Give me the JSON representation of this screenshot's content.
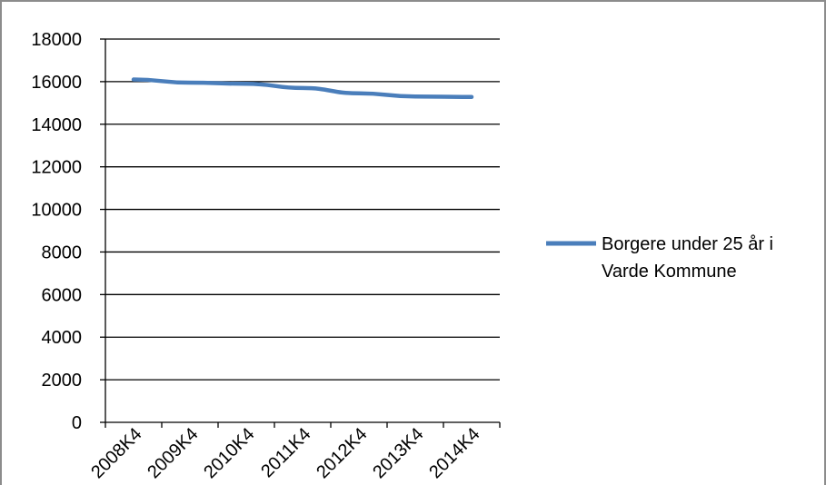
{
  "chart_data": {
    "type": "line",
    "categories": [
      "2008K4",
      "2009K4",
      "2010K4",
      "2011K4",
      "2012K4",
      "2013K4",
      "2014K4"
    ],
    "series": [
      {
        "name": "Borgere under 25 år i Varde Kommune",
        "values": [
          16100,
          15950,
          15900,
          15700,
          15450,
          15300,
          15280
        ],
        "color": "#4a7ebb"
      }
    ],
    "yticks": [
      0,
      2000,
      4000,
      6000,
      8000,
      10000,
      12000,
      14000,
      16000,
      18000
    ],
    "ylim": [
      0,
      18000
    ],
    "grid": true,
    "legend": "right",
    "legend_lines": [
      "Borgere under 25 år i",
      "Varde Kommune"
    ]
  }
}
